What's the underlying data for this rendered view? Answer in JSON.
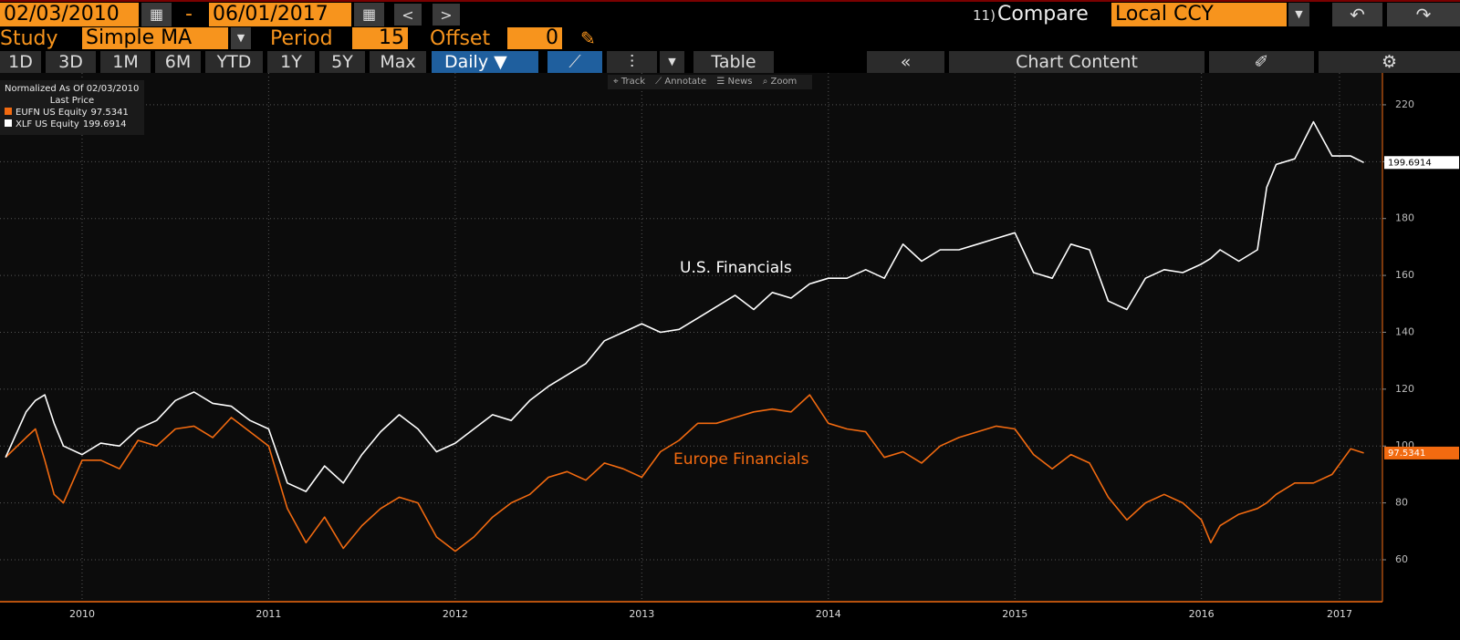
{
  "toolbar": {
    "start_date": "02/03/2010",
    "date_separator": "-",
    "end_date": "06/01/2017",
    "compare_number": "11)",
    "compare_label": "Compare",
    "currency": "Local CCY"
  },
  "study_bar": {
    "study_label": "Study",
    "study": "Simple MA",
    "period_label": "Period",
    "period": "15",
    "offset_label": "Offset",
    "offset": "0"
  },
  "range_buttons": [
    "1D",
    "3D",
    "1M",
    "6M",
    "YTD",
    "1Y",
    "5Y",
    "Max"
  ],
  "frequency": "Daily",
  "table_button": "Table",
  "chart_content_button": "Chart Content",
  "chart_tools": [
    "Track",
    "Annotate",
    "News",
    "Zoom"
  ],
  "chart_data": {
    "type": "line",
    "legend_title": "Normalized As Of 02/03/2010",
    "legend_subtitle": "Last Price",
    "annotations": [
      "U.S. Financials",
      "Europe Financials"
    ],
    "x": [
      2010.09,
      2010.2,
      2010.25,
      2010.3,
      2010.35,
      2010.4,
      2010.5,
      2010.6,
      2010.7,
      2010.8,
      2010.9,
      2011.0,
      2011.1,
      2011.2,
      2011.3,
      2011.4,
      2011.5,
      2011.6,
      2011.7,
      2011.8,
      2011.9,
      2012.0,
      2012.1,
      2012.2,
      2012.3,
      2012.4,
      2012.5,
      2012.6,
      2012.7,
      2012.8,
      2012.9,
      2013.0,
      2013.1,
      2013.2,
      2013.3,
      2013.4,
      2013.5,
      2013.6,
      2013.7,
      2013.8,
      2013.9,
      2014.0,
      2014.1,
      2014.2,
      2014.3,
      2014.4,
      2014.5,
      2014.6,
      2014.7,
      2014.8,
      2014.9,
      2015.0,
      2015.1,
      2015.2,
      2015.3,
      2015.4,
      2015.5,
      2015.6,
      2015.7,
      2015.8,
      2015.9,
      2016.0,
      2016.1,
      2016.2,
      2016.3,
      2016.4,
      2016.5,
      2016.55,
      2016.6,
      2016.7,
      2016.8,
      2016.85,
      2016.9,
      2017.0,
      2017.1,
      2017.2,
      2017.3,
      2017.37
    ],
    "series": [
      {
        "name": "EUFN US Equity",
        "color": "#f26a10",
        "values": [
          96,
          103,
          106,
          95,
          83,
          80,
          95,
          95,
          92,
          102,
          100,
          106,
          107,
          103,
          110,
          105,
          100,
          78,
          66,
          75,
          64,
          72,
          78,
          82,
          80,
          68,
          63,
          68,
          75,
          80,
          83,
          89,
          91,
          88,
          94,
          92,
          89,
          98,
          102,
          108,
          108,
          110,
          112,
          113,
          112,
          118,
          108,
          106,
          105,
          96,
          98,
          94,
          100,
          103,
          105,
          107,
          106,
          97,
          92,
          97,
          94,
          82,
          74,
          80,
          83,
          80,
          74,
          66,
          72,
          76,
          78,
          80,
          83,
          87,
          87,
          90,
          99,
          97.5341
        ]
      },
      {
        "name": "XLF US Equity",
        "color": "#ffffff",
        "values": [
          96,
          112,
          116,
          118,
          108,
          100,
          97,
          101,
          100,
          106,
          109,
          116,
          119,
          115,
          114,
          109,
          106,
          87,
          84,
          93,
          87,
          97,
          105,
          111,
          106,
          98,
          101,
          106,
          111,
          109,
          116,
          121,
          125,
          129,
          137,
          140,
          143,
          140,
          141,
          145,
          149,
          153,
          148,
          154,
          152,
          157,
          159,
          159,
          162,
          159,
          171,
          165,
          169,
          169,
          171,
          173,
          175,
          161,
          159,
          171,
          169,
          151,
          148,
          159,
          162,
          161,
          164,
          166,
          169,
          165,
          169,
          191,
          199,
          201,
          214,
          202,
          202,
          199.6914
        ]
      }
    ],
    "xlim": [
      2010.06,
      2017.47
    ],
    "xticks": [
      {
        "value": 2010.5,
        "label": "2010"
      },
      {
        "value": 2011.5,
        "label": "2011"
      },
      {
        "value": 2012.5,
        "label": "2012"
      },
      {
        "value": 2013.5,
        "label": "2013"
      },
      {
        "value": 2014.5,
        "label": "2014"
      },
      {
        "value": 2015.5,
        "label": "2015"
      },
      {
        "value": 2016.5,
        "label": "2016"
      },
      {
        "value": 2017.24,
        "label": "2017"
      }
    ],
    "ylim": [
      45.25,
      231.2
    ],
    "yticks": [
      60,
      80,
      100,
      120,
      140,
      160,
      180,
      200,
      220
    ],
    "grid": true
  }
}
